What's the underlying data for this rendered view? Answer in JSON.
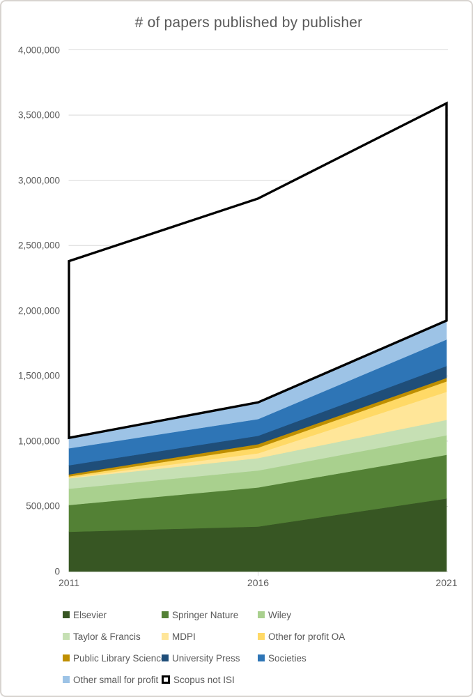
{
  "chart_data": {
    "type": "area",
    "stacked": true,
    "title": "# of papers published by publisher",
    "xlabel": "",
    "ylabel": "",
    "x": [
      2011,
      2016,
      2021
    ],
    "x_labels": [
      "2011",
      "2016",
      "2021"
    ],
    "ylim": [
      0,
      4000000
    ],
    "grid": true,
    "legend_position": "bottom",
    "y_ticks": [
      {
        "v": 0,
        "label": "0"
      },
      {
        "v": 500000,
        "label": "500,000"
      },
      {
        "v": 1000000,
        "label": "1,000,000"
      },
      {
        "v": 1500000,
        "label": "1,500,000"
      },
      {
        "v": 2000000,
        "label": "2,000,000"
      },
      {
        "v": 2500000,
        "label": "2,500,000"
      },
      {
        "v": 3000000,
        "label": "3,000,000"
      },
      {
        "v": 3500000,
        "label": "3,500,000"
      },
      {
        "v": 4000000,
        "label": "4,000,000"
      }
    ],
    "series": [
      {
        "name": "Elsevier",
        "color": "#375623",
        "values": [
          305000,
          345000,
          560000
        ]
      },
      {
        "name": "Springer Nature",
        "color": "#538135",
        "values": [
          205000,
          300000,
          335000
        ]
      },
      {
        "name": "Wiley",
        "color": "#a9d08e",
        "values": [
          125000,
          130000,
          150000
        ]
      },
      {
        "name": "Taylor & Francis",
        "color": "#c6e0b4",
        "values": [
          80000,
          95000,
          118000
        ]
      },
      {
        "name": "MDPI",
        "color": "#ffe699",
        "values": [
          5000,
          37000,
          215000
        ]
      },
      {
        "name": "Other for profit OA",
        "color": "#ffd966",
        "values": [
          10000,
          43000,
          80000
        ]
      },
      {
        "name": "Public Library Science",
        "color": "#bf8f00",
        "values": [
          15000,
          27000,
          27000
        ]
      },
      {
        "name": "University Press",
        "color": "#1f4e79",
        "values": [
          70000,
          64000,
          91000
        ]
      },
      {
        "name": "Societies",
        "color": "#2e75b6",
        "values": [
          130000,
          128000,
          203000
        ]
      },
      {
        "name": "Other small for profit",
        "color": "#9dc3e6",
        "values": [
          80000,
          128000,
          145000
        ]
      }
    ],
    "overlay_series": {
      "name": "Scopus not ISI",
      "stroke": "#000000",
      "fill": "#ffffff",
      "values": [
        2380000,
        2860000,
        3590000
      ]
    },
    "colors": {
      "gridline": "#d9d9d9",
      "axis_text": "#595959",
      "title_text": "#595959",
      "background": "#ffffff"
    }
  }
}
